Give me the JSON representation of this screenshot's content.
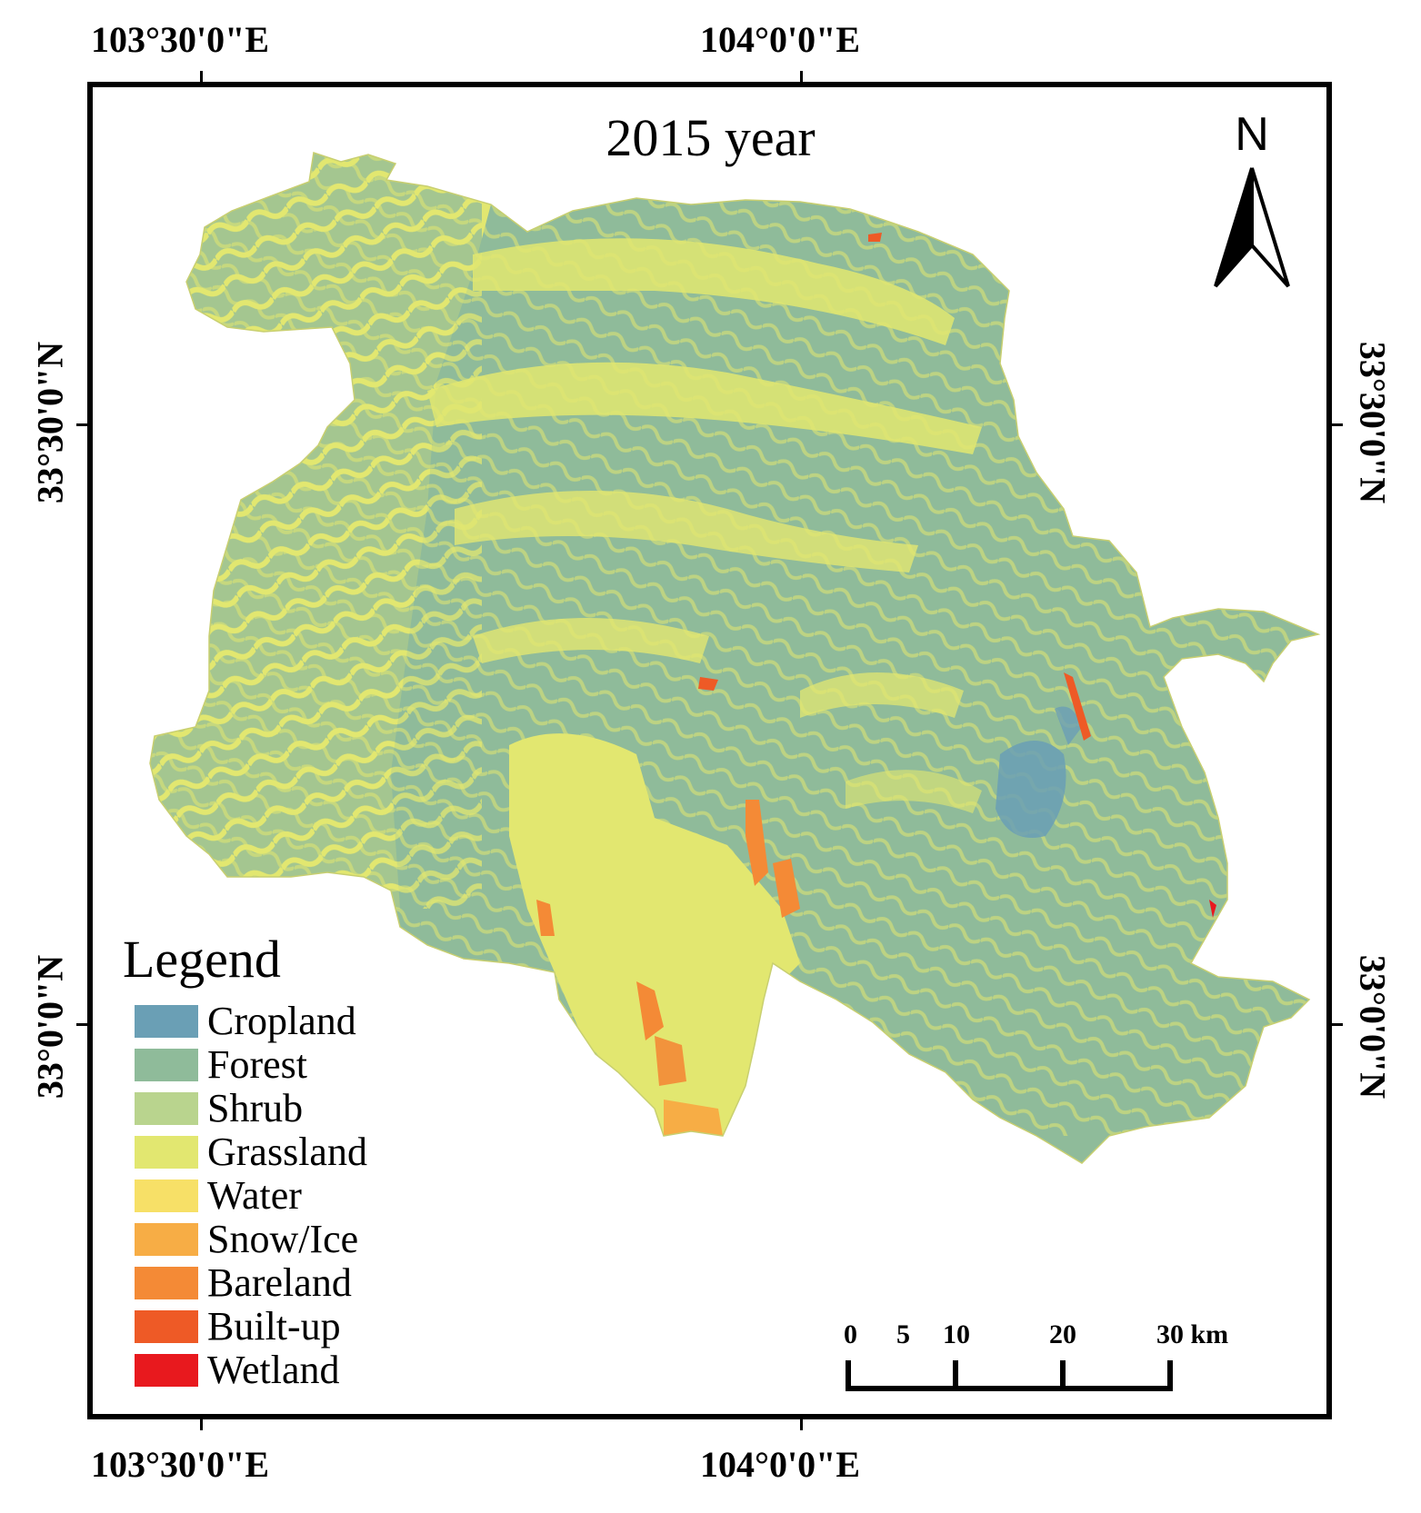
{
  "title": "2015 year",
  "coords": {
    "top_left": "103°30'0\"E",
    "top_right": "104°0'0\"E",
    "bottom_left": "103°30'0\"E",
    "bottom_right": "104°0'0\"E",
    "left_upper": "33°30'0\"N",
    "left_lower": "33°0'0\"N",
    "right_upper": "33°30'0\"N",
    "right_lower": "33°0'0\"N"
  },
  "north_arrow": {
    "label": "N",
    "icon": "north-arrow-icon"
  },
  "legend": {
    "title": "Legend",
    "items": [
      {
        "label": "Cropland",
        "color": "#6a9fb5"
      },
      {
        "label": "Forest",
        "color": "#8fbb9a"
      },
      {
        "label": "Shrub",
        "color": "#b9d48e"
      },
      {
        "label": "Grassland",
        "color": "#e2e770"
      },
      {
        "label": "Water",
        "color": "#f7e067"
      },
      {
        "label": "Snow/Ice",
        "color": "#f7ad45"
      },
      {
        "label": "Bareland",
        "color": "#f48a36"
      },
      {
        "label": "Built-up",
        "color": "#ee5a26"
      },
      {
        "label": "Wetland",
        "color": "#e8191e"
      }
    ]
  },
  "scale_bar": {
    "labels": [
      "0",
      "5",
      "10",
      "20",
      "30 km"
    ]
  }
}
